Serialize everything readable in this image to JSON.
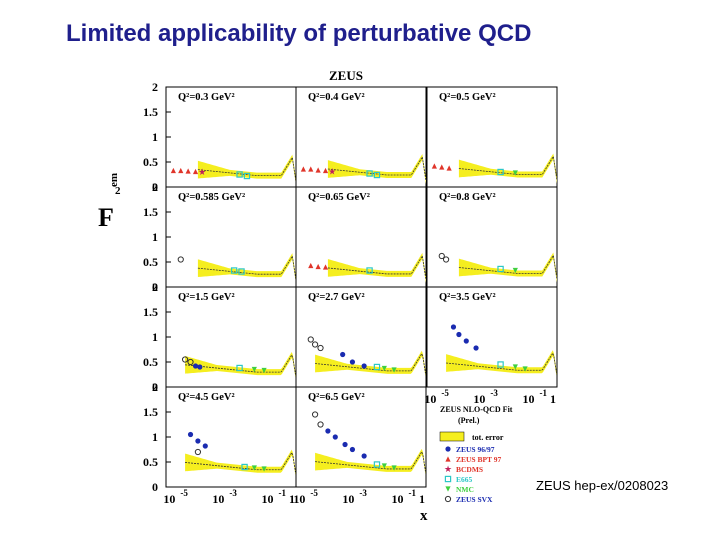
{
  "slide": {
    "title": "Limited applicability of perturbative QCD",
    "reference": "ZEUS hep-ex/0208023"
  },
  "chart_data": {
    "type": "scatter",
    "title": "ZEUS",
    "ylabel": "F",
    "ylabel_sub": "2",
    "ylabel_sup": "em",
    "xlabel": "x",
    "x_scale": "log",
    "xlim": [
      5e-06,
      1
    ],
    "ylim": [
      0,
      2
    ],
    "y_ticks": [
      "0",
      "0.5",
      "1",
      "1.5",
      "2"
    ],
    "x_ticks": [
      {
        "base": "10",
        "exp": "-5",
        "x": 1e-05
      },
      {
        "base": "10",
        "exp": "-3",
        "x": 0.001
      },
      {
        "base": "10",
        "exp": "-1",
        "x": 0.1
      },
      {
        "base": "1",
        "exp": "",
        "x": 1
      }
    ],
    "panels": [
      {
        "label": "Q²=0.3 GeV²",
        "q2": 0.3,
        "fit_start": 0.0001
      },
      {
        "label": "Q²=0.4 GeV²",
        "q2": 0.4,
        "fit_start": 0.0001
      },
      {
        "label": "Q²=0.5 GeV²",
        "q2": 0.5,
        "fit_start": 0.0001
      },
      {
        "label": "Q²=0.585 GeV²",
        "q2": 0.585,
        "fit_start": 0.0001
      },
      {
        "label": "Q²=0.65 GeV²",
        "q2": 0.65,
        "fit_start": 0.0001
      },
      {
        "label": "Q²=0.8 GeV²",
        "q2": 0.8,
        "fit_start": 0.0001
      },
      {
        "label": "Q²=1.5 GeV²",
        "q2": 1.5,
        "fit_start": 3e-05
      },
      {
        "label": "Q²=2.7 GeV²",
        "q2": 2.7,
        "fit_start": 3e-05
      },
      {
        "label": "Q²=3.5 GeV²",
        "q2": 3.5,
        "fit_start": 3e-05
      },
      {
        "label": "Q²=4.5 GeV²",
        "q2": 4.5,
        "fit_start": 3e-05
      },
      {
        "label": "Q²=6.5 GeV²",
        "q2": 6.5,
        "fit_start": 3e-05
      }
    ],
    "series": [
      {
        "name": "ZEUS 96/97",
        "color": "#1a2bb0",
        "marker": "circle",
        "points": [
          {
            "panel": 6,
            "x": 8e-05,
            "y": 0.42
          },
          {
            "panel": 6,
            "x": 0.00012,
            "y": 0.4
          },
          {
            "panel": 7,
            "x": 0.0004,
            "y": 0.65
          },
          {
            "panel": 7,
            "x": 0.001,
            "y": 0.5
          },
          {
            "panel": 7,
            "x": 0.003,
            "y": 0.42
          },
          {
            "panel": 8,
            "x": 6e-05,
            "y": 1.2
          },
          {
            "panel": 8,
            "x": 0.0001,
            "y": 1.05
          },
          {
            "panel": 8,
            "x": 0.0002,
            "y": 0.92
          },
          {
            "panel": 8,
            "x": 0.0005,
            "y": 0.78
          },
          {
            "panel": 9,
            "x": 5e-05,
            "y": 1.05
          },
          {
            "panel": 9,
            "x": 0.0001,
            "y": 0.92
          },
          {
            "panel": 9,
            "x": 0.0002,
            "y": 0.82
          },
          {
            "panel": 10,
            "x": 0.0001,
            "y": 1.12
          },
          {
            "panel": 10,
            "x": 0.0002,
            "y": 1.0
          },
          {
            "panel": 10,
            "x": 0.0005,
            "y": 0.85
          },
          {
            "panel": 10,
            "x": 0.001,
            "y": 0.75
          },
          {
            "panel": 10,
            "x": 0.003,
            "y": 0.62
          }
        ]
      },
      {
        "name": "ZEUS BPT 97",
        "color": "#e0352a",
        "marker": "triangle",
        "points": [
          {
            "panel": 0,
            "x": 1e-05,
            "y": 0.33
          },
          {
            "panel": 0,
            "x": 2e-05,
            "y": 0.33
          },
          {
            "panel": 0,
            "x": 4e-05,
            "y": 0.32
          },
          {
            "panel": 0,
            "x": 8e-05,
            "y": 0.31
          },
          {
            "panel": 1,
            "x": 1e-05,
            "y": 0.36
          },
          {
            "panel": 1,
            "x": 2e-05,
            "y": 0.36
          },
          {
            "panel": 1,
            "x": 4e-05,
            "y": 0.34
          },
          {
            "panel": 1,
            "x": 8e-05,
            "y": 0.33
          },
          {
            "panel": 2,
            "x": 1e-05,
            "y": 0.42
          },
          {
            "panel": 2,
            "x": 2e-05,
            "y": 0.4
          },
          {
            "panel": 2,
            "x": 4e-05,
            "y": 0.38
          },
          {
            "panel": 4,
            "x": 2e-05,
            "y": 0.43
          },
          {
            "panel": 4,
            "x": 4e-05,
            "y": 0.41
          },
          {
            "panel": 4,
            "x": 8e-05,
            "y": 0.4
          }
        ]
      },
      {
        "name": "BCDMS",
        "color": "#c0205a",
        "marker": "star",
        "points": [
          {
            "panel": 0,
            "x": 0.00015,
            "y": 0.3
          },
          {
            "panel": 1,
            "x": 0.00015,
            "y": 0.31
          }
        ]
      },
      {
        "name": "E665",
        "color": "#2bc7c7",
        "marker": "square",
        "points": [
          {
            "panel": 0,
            "x": 0.005,
            "y": 0.25
          },
          {
            "panel": 0,
            "x": 0.01,
            "y": 0.22
          },
          {
            "panel": 1,
            "x": 0.005,
            "y": 0.27
          },
          {
            "panel": 1,
            "x": 0.01,
            "y": 0.24
          },
          {
            "panel": 2,
            "x": 0.005,
            "y": 0.3
          },
          {
            "panel": 3,
            "x": 0.003,
            "y": 0.33
          },
          {
            "panel": 3,
            "x": 0.006,
            "y": 0.31
          },
          {
            "panel": 4,
            "x": 0.005,
            "y": 0.33
          },
          {
            "panel": 5,
            "x": 0.005,
            "y": 0.36
          },
          {
            "panel": 6,
            "x": 0.005,
            "y": 0.38
          },
          {
            "panel": 7,
            "x": 0.01,
            "y": 0.4
          },
          {
            "panel": 8,
            "x": 0.005,
            "y": 0.45
          },
          {
            "panel": 9,
            "x": 0.008,
            "y": 0.4
          },
          {
            "panel": 10,
            "x": 0.01,
            "y": 0.45
          }
        ]
      },
      {
        "name": "NMC",
        "color": "#3fcf3f",
        "marker": "triangle-down",
        "points": [
          {
            "panel": 2,
            "x": 0.02,
            "y": 0.28
          },
          {
            "panel": 5,
            "x": 0.02,
            "y": 0.33
          },
          {
            "panel": 6,
            "x": 0.02,
            "y": 0.35
          },
          {
            "panel": 6,
            "x": 0.05,
            "y": 0.33
          },
          {
            "panel": 7,
            "x": 0.02,
            "y": 0.37
          },
          {
            "panel": 7,
            "x": 0.05,
            "y": 0.34
          },
          {
            "panel": 8,
            "x": 0.02,
            "y": 0.4
          },
          {
            "panel": 8,
            "x": 0.05,
            "y": 0.36
          },
          {
            "panel": 9,
            "x": 0.02,
            "y": 0.38
          },
          {
            "panel": 9,
            "x": 0.05,
            "y": 0.36
          },
          {
            "panel": 10,
            "x": 0.02,
            "y": 0.42
          },
          {
            "panel": 10,
            "x": 0.05,
            "y": 0.38
          }
        ]
      },
      {
        "name": "ZEUS SVX",
        "color": "#333333",
        "marker": "open-circle",
        "points": [
          {
            "panel": 3,
            "x": 2e-05,
            "y": 0.55
          },
          {
            "panel": 5,
            "x": 2e-05,
            "y": 0.62
          },
          {
            "panel": 5,
            "x": 3e-05,
            "y": 0.55
          },
          {
            "panel": 6,
            "x": 3e-05,
            "y": 0.55
          },
          {
            "panel": 6,
            "x": 5e-05,
            "y": 0.5
          },
          {
            "panel": 7,
            "x": 2e-05,
            "y": 0.95
          },
          {
            "panel": 7,
            "x": 3e-05,
            "y": 0.85
          },
          {
            "panel": 7,
            "x": 5e-05,
            "y": 0.78
          },
          {
            "panel": 9,
            "x": 0.0001,
            "y": 0.7
          },
          {
            "panel": 10,
            "x": 3e-05,
            "y": 1.45
          },
          {
            "panel": 10,
            "x": 5e-05,
            "y": 1.25
          }
        ]
      }
    ],
    "legend": {
      "title": "ZEUS NLO-QCD Fit",
      "subtitle": "(Prel.)",
      "band_label": "tot. error",
      "band_color": "#f5ee1f",
      "entries": [
        "ZEUS 96/97",
        "ZEUS BPT 97",
        "BCDMS",
        "E665",
        "NMC",
        "ZEUS SVX"
      ]
    }
  }
}
